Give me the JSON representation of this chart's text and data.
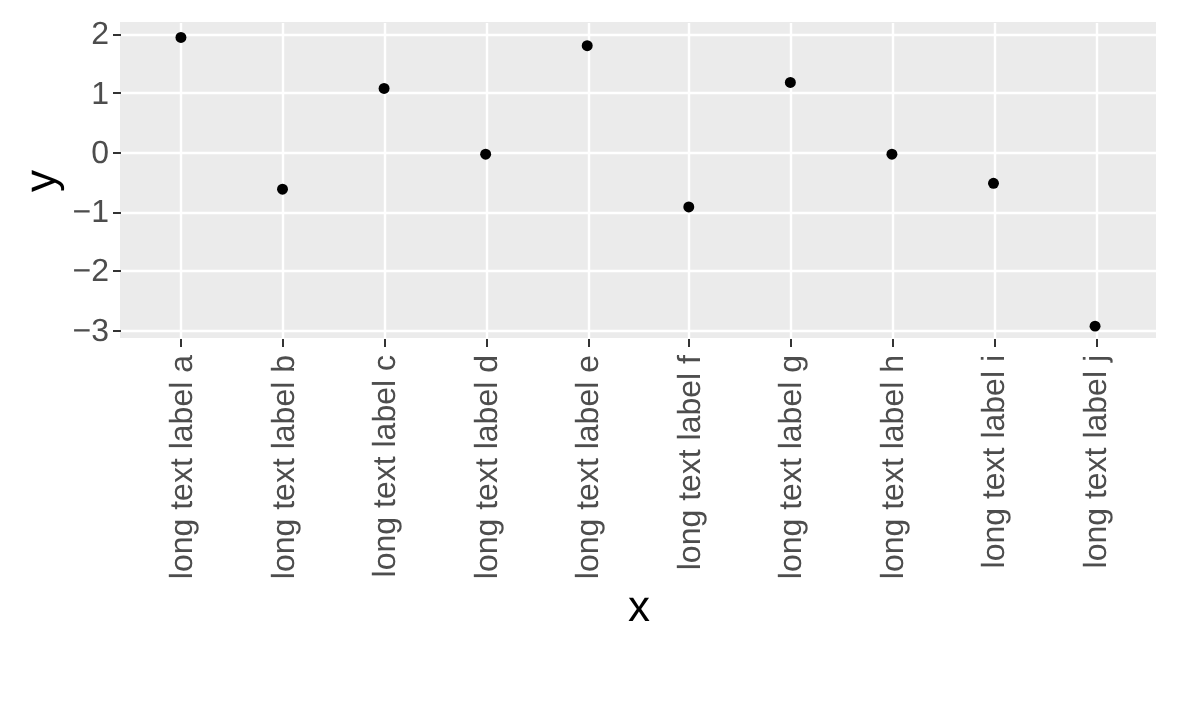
{
  "chart_data": {
    "type": "scatter",
    "xlabel": "x",
    "ylabel": "y",
    "categories": [
      "long text label a",
      "long text label b",
      "long text label c",
      "long text label d",
      "long text label e",
      "long text label f",
      "long text label g",
      "long text label h",
      "long text label i",
      "long text label j"
    ],
    "values": [
      1.93,
      -0.63,
      1.07,
      -0.04,
      1.79,
      -0.93,
      1.17,
      -0.04,
      -0.53,
      -2.94
    ],
    "color": "#000000",
    "ylim": [
      -3.14,
      2.19
    ],
    "yticks": [
      -3,
      -2,
      -1,
      0,
      1,
      2
    ],
    "grid": true,
    "marker": "circle"
  }
}
